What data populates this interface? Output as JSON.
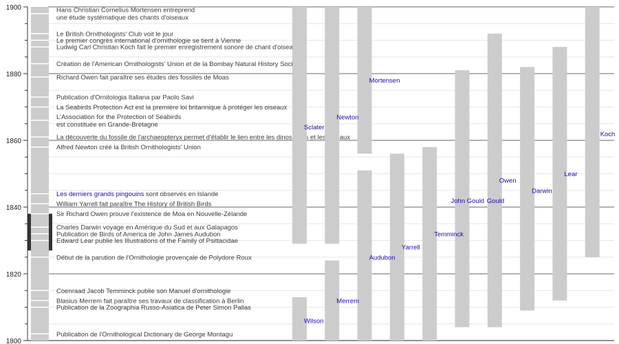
{
  "chart_data": {
    "type": "timeline",
    "ylim": [
      1800,
      1900
    ],
    "y_ticks": [
      "1800",
      "1820",
      "1840",
      "1860",
      "1880",
      "1900"
    ],
    "grid": true,
    "colors": {
      "bar": "#cccccc",
      "highlight": "#333333",
      "link": "#1a0dab",
      "text": "#3a3a3a"
    },
    "highlight_period": [
      1827,
      1838
    ],
    "events": [
      {
        "year": 1898,
        "lines": [
          "Hans Christian Cornelius Mortensen entreprend",
          "une étude systématique des chants d'oiseaux"
        ]
      },
      {
        "year": 1892,
        "lines": [
          "Le British Ornithologists' Club voit le jour"
        ]
      },
      {
        "year": 1890,
        "lines": [
          "Le premier congrès international d'ornithologie se tient à Vienne"
        ]
      },
      {
        "year": 1888,
        "lines": [
          "Ludwig Carl Christian Koch fait le premier enregistrement sonore de chant d'oiseau"
        ]
      },
      {
        "year": 1883,
        "lines": [
          "Création de l'American Ornithologists' Union et de la Bombay Natural History Society"
        ]
      },
      {
        "year": 1879,
        "lines": [
          "Richard Owen fait paraître ses études des fossiles de Moas"
        ]
      },
      {
        "year": 1873,
        "lines": [
          "Publication d'Ornitologia Italiana par Paolo Savi"
        ]
      },
      {
        "year": 1870,
        "lines": [
          "La Seabirds Protection Act est la première loi britannique à protéger les oiseaux"
        ]
      },
      {
        "year": 1866,
        "lines": [
          "L'Association for the Protection of Seabirds",
          "est constituée en Grande-Bretagne"
        ]
      },
      {
        "year": 1861,
        "lines": [
          "La découverte du fossile de l'archaeopteryx permet d'établir le lien entre les dinosaures et les oiseaux"
        ]
      },
      {
        "year": 1858,
        "lines": [
          "Alfred Newton créé la British Ornithologists' Union"
        ]
      },
      {
        "year": 1844,
        "lines": [
          "sont observés en Islande"
        ],
        "link": "Les derniers grands pingouins"
      },
      {
        "year": 1841,
        "lines": [
          "William Yarrell fait paraître The History of British Birds"
        ]
      },
      {
        "year": 1838,
        "lines": [
          "Sir Richard Owen prouve l'existence de Moa en Nouvelle-Zélande"
        ]
      },
      {
        "year": 1834,
        "lines": [
          "Charles Darwin voyage en Amérique du Sud et aux Galapagos"
        ]
      },
      {
        "year": 1832,
        "lines": [
          "Publication de Birds of America de John James Audubon"
        ]
      },
      {
        "year": 1830,
        "lines": [
          "Edward Lear publie les Illustrations of the Family of Psittacidae"
        ]
      },
      {
        "year": 1825,
        "lines": [
          "Début de la parution de l'Ornithologie provençale de Polydore Roux"
        ]
      },
      {
        "year": 1815,
        "lines": [
          "Coenraad Jacob Temminck publie son Manuel d'ornithologie"
        ]
      },
      {
        "year": 1812,
        "lines": [
          "Blasius Merrem fait paraître ses travaux de classification à Berlin"
        ]
      },
      {
        "year": 1810,
        "lines": [
          "Publication de la Zoographia Russo-Asiatica de Peter Simon Pallas"
        ]
      },
      {
        "year": 1802,
        "lines": [
          "Publication de l'Ornithological Dictionary de George Montagu"
        ]
      }
    ],
    "people": [
      {
        "name": "Sclater",
        "column": 1,
        "start": 1829,
        "end": 1900,
        "label_year": 1864
      },
      {
        "name": "Wilson",
        "column": 1,
        "start": 1800,
        "end": 1813,
        "label_year": 1806
      },
      {
        "name": "Newton",
        "column": 2,
        "start": 1829,
        "end": 1900,
        "label_year": 1867
      },
      {
        "name": "Merrem",
        "column": 2,
        "start": 1800,
        "end": 1824,
        "label_year": 1812
      },
      {
        "name": "Mortensen",
        "column": 3,
        "start": 1856,
        "end": 1900,
        "label_year": 1878
      },
      {
        "name": "Audubon",
        "column": 3,
        "start": 1800,
        "end": 1851,
        "label_year": 1825
      },
      {
        "name": "Yarrell",
        "column": 4,
        "start": 1800,
        "end": 1856,
        "label_year": 1828
      },
      {
        "name": "Temminck",
        "column": 5,
        "start": 1800,
        "end": 1858,
        "label_year": 1832
      },
      {
        "name": "John Gould",
        "column": 6,
        "start": 1804,
        "end": 1881,
        "label_year": 1842
      },
      {
        "name": "Gould",
        "column": 7,
        "start": 1804,
        "end": 1892,
        "label_year": 1842,
        "label_only": true
      },
      {
        "name": "Owen",
        "column": 7,
        "start": 1804,
        "end": 1892,
        "label_year": 1848
      },
      {
        "name": "Darwin",
        "column": 8,
        "start": 1809,
        "end": 1882,
        "label_year": 1845
      },
      {
        "name": "Lear",
        "column": 9,
        "start": 1812,
        "end": 1888,
        "label_year": 1850
      },
      {
        "name": "Koch",
        "column": 10,
        "start": 1825,
        "end": 1900,
        "label_year": 1862
      }
    ]
  }
}
